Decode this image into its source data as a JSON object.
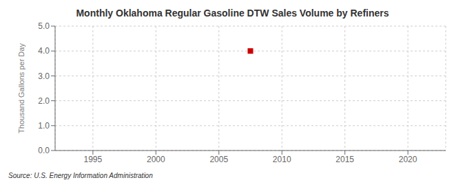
{
  "chart_data": {
    "type": "scatter",
    "title": "Monthly Oklahoma Regular Gasoline DTW Sales Volume by Refiners",
    "y_label": "Thousand Gallons per Day",
    "source": "Source: U.S. Energy Information Administration",
    "x": [
      2007.5
    ],
    "values": [
      4.0
    ],
    "color": "#cc0000",
    "marker": "square",
    "xlim": [
      1992,
      2023
    ],
    "ylim": [
      0.0,
      5.0
    ],
    "xticks": [
      1995,
      2000,
      2005,
      2010,
      2015,
      2020
    ],
    "yticks": [
      {
        "value": 0,
        "label": "0.0"
      },
      {
        "value": 1,
        "label": "1.0"
      },
      {
        "value": 2,
        "label": "2.0"
      },
      {
        "value": 3,
        "label": "3.0"
      },
      {
        "value": 4,
        "label": "4.0"
      },
      {
        "value": 5,
        "label": "5.0"
      }
    ],
    "grid": true
  }
}
